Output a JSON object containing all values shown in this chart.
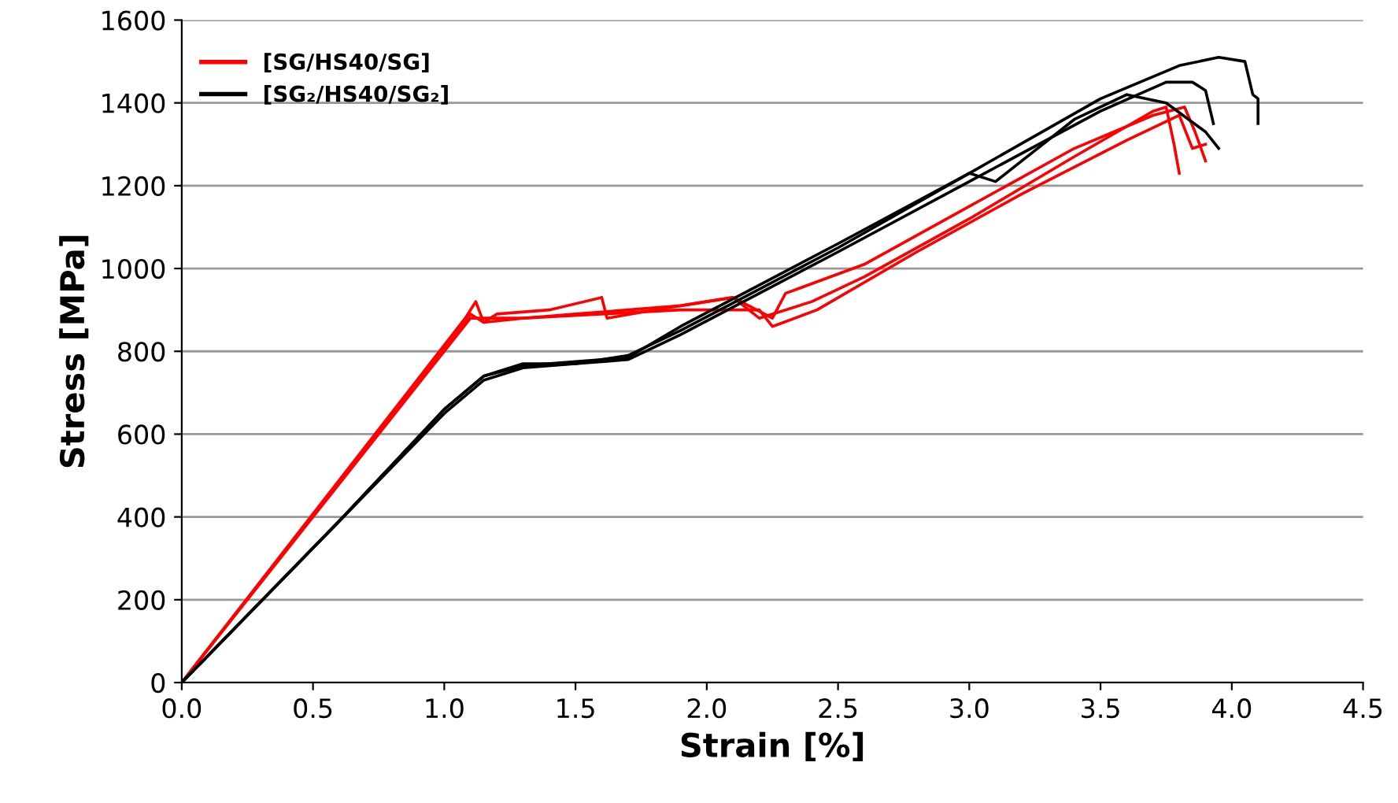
{
  "chart_data": {
    "type": "line",
    "xlabel": "Strain [%]",
    "ylabel": "Stress [MPa]",
    "xlim": [
      0,
      4.5
    ],
    "xticks": [
      {
        "value": 0,
        "label": "0.0"
      },
      0.5,
      {
        "value": 1,
        "label": "1.0"
      },
      1.5,
      {
        "value": 2,
        "label": "2.0"
      },
      2.5,
      {
        "value": 3,
        "label": "3.0"
      },
      3.5,
      {
        "value": 4,
        "label": "4.0"
      },
      4.5
    ],
    "ylim": [
      0,
      1600
    ],
    "yticks": [
      0,
      200,
      400,
      600,
      800,
      1000,
      1200,
      1400,
      1600
    ],
    "grid": "y",
    "legend": "top left",
    "marker": "none",
    "line_style": "solid",
    "series": [
      {
        "name": "[SG/HS40/SG]",
        "color": "#ff0000",
        "x": [
          0,
          1.08,
          1.12,
          1.15,
          1.2,
          1.4,
          1.6,
          1.62,
          1.8,
          2.0,
          2.1,
          2.2,
          2.4,
          2.6,
          3.0,
          3.4,
          3.7,
          3.75,
          3.78,
          3.8
        ],
        "values": [
          0,
          880,
          920,
          870,
          890,
          900,
          930,
          880,
          900,
          920,
          930,
          880,
          920,
          980,
          1120,
          1270,
          1380,
          1390,
          1300,
          1230
        ]
      },
      {
        "color": "#ff0000",
        "x": [
          0,
          1.1,
          1.15,
          1.3,
          1.5,
          1.7,
          1.9,
          2.1,
          2.25,
          2.3,
          2.6,
          3.0,
          3.4,
          3.7,
          3.82,
          3.86,
          3.9
        ],
        "values": [
          0,
          890,
          870,
          880,
          890,
          900,
          910,
          930,
          880,
          940,
          1010,
          1150,
          1290,
          1370,
          1390,
          1330,
          1260
        ]
      },
      {
        "color": "#ff0000",
        "x": [
          0,
          1.1,
          1.3,
          1.6,
          1.9,
          2.2,
          2.25,
          2.42,
          2.8,
          3.2,
          3.6,
          3.8,
          3.85,
          3.9
        ],
        "values": [
          0,
          880,
          880,
          890,
          900,
          900,
          860,
          900,
          1040,
          1180,
          1310,
          1370,
          1290,
          1300
        ]
      },
      {
        "name": "[SG₂/HS40/SG₂]",
        "color": "#000000",
        "x": [
          0,
          0.6,
          1.0,
          1.15,
          1.3,
          1.5,
          1.7,
          1.9,
          2.2,
          2.5,
          3.0,
          3.5,
          3.8,
          3.95,
          4.05,
          4.08,
          4.1,
          4.1
        ],
        "values": [
          0,
          390,
          660,
          740,
          770,
          770,
          790,
          850,
          950,
          1050,
          1230,
          1410,
          1490,
          1510,
          1500,
          1420,
          1410,
          1350
        ]
      },
      {
        "color": "#000000",
        "x": [
          0,
          0.6,
          1.0,
          1.15,
          1.3,
          1.5,
          1.7,
          1.9,
          2.2,
          2.5,
          3.0,
          3.5,
          3.75,
          3.85,
          3.9,
          3.93
        ],
        "values": [
          0,
          390,
          650,
          730,
          760,
          770,
          780,
          840,
          940,
          1040,
          1210,
          1380,
          1450,
          1450,
          1430,
          1350
        ]
      },
      {
        "color": "#000000",
        "x": [
          0,
          0.6,
          1.0,
          1.15,
          1.3,
          1.5,
          1.7,
          1.9,
          2.2,
          2.5,
          3.0,
          3.1,
          3.4,
          3.6,
          3.75,
          3.9,
          3.95
        ],
        "values": [
          0,
          390,
          660,
          740,
          765,
          775,
          785,
          860,
          960,
          1060,
          1230,
          1210,
          1360,
          1420,
          1400,
          1330,
          1290
        ]
      }
    ]
  }
}
